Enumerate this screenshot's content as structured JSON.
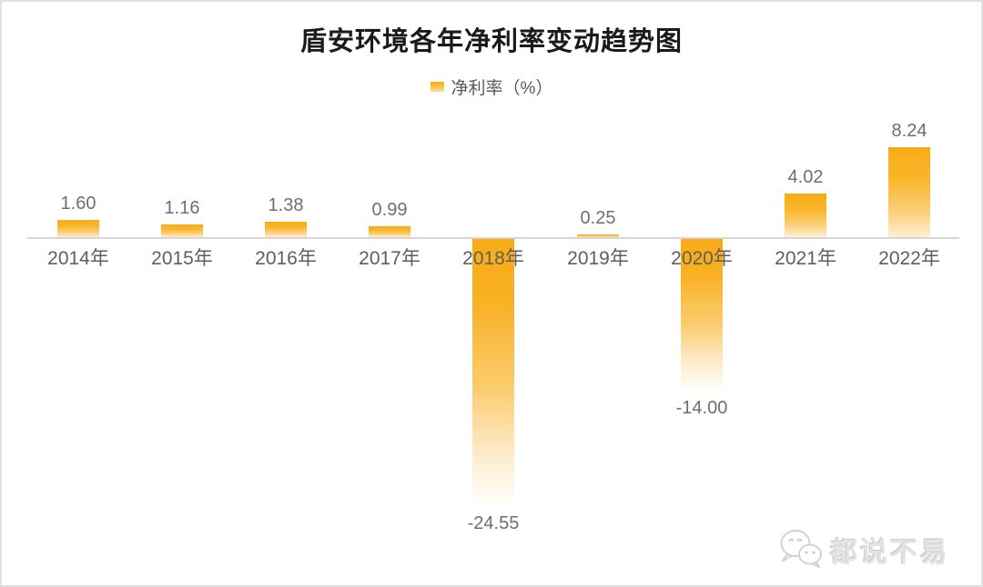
{
  "title": "盾安环境各年净利率变动趋势图",
  "legend": {
    "label": "净利率（%）"
  },
  "chart_data": {
    "type": "bar",
    "title": "盾安环境各年净利率变动趋势图",
    "legend_entries": [
      "净利率（%）"
    ],
    "legend_position": "top-center",
    "categories": [
      "2014年",
      "2015年",
      "2016年",
      "2017年",
      "2018年",
      "2019年",
      "2020年",
      "2021年",
      "2022年"
    ],
    "values": [
      1.6,
      1.16,
      1.38,
      0.99,
      -24.55,
      0.25,
      -14.0,
      4.02,
      8.24
    ],
    "data_labels": [
      "1.60",
      "1.16",
      "1.38",
      "0.99",
      "-24.55",
      "0.25",
      "-14.00",
      "4.02",
      "8.24"
    ],
    "xlabel": "",
    "ylabel": "净利率（%）",
    "grid": false,
    "axis": "only x zero-line shown, no y axis ticks",
    "bar_fill": "vertical gradient, solid gold at value end fading to white toward zero/below"
  },
  "colors": {
    "bar_top": "#F7AC16",
    "bar_fade": "#FDEFD4",
    "axis_line": "#D6D6D6",
    "label_gray": "#6E6E6E",
    "category_gray": "#5F5F5F",
    "title_color": "#1A1A1A",
    "watermark_gray": "#E3E3E3"
  },
  "watermark": {
    "text": "都说不易",
    "icon": "wechat-icon"
  }
}
